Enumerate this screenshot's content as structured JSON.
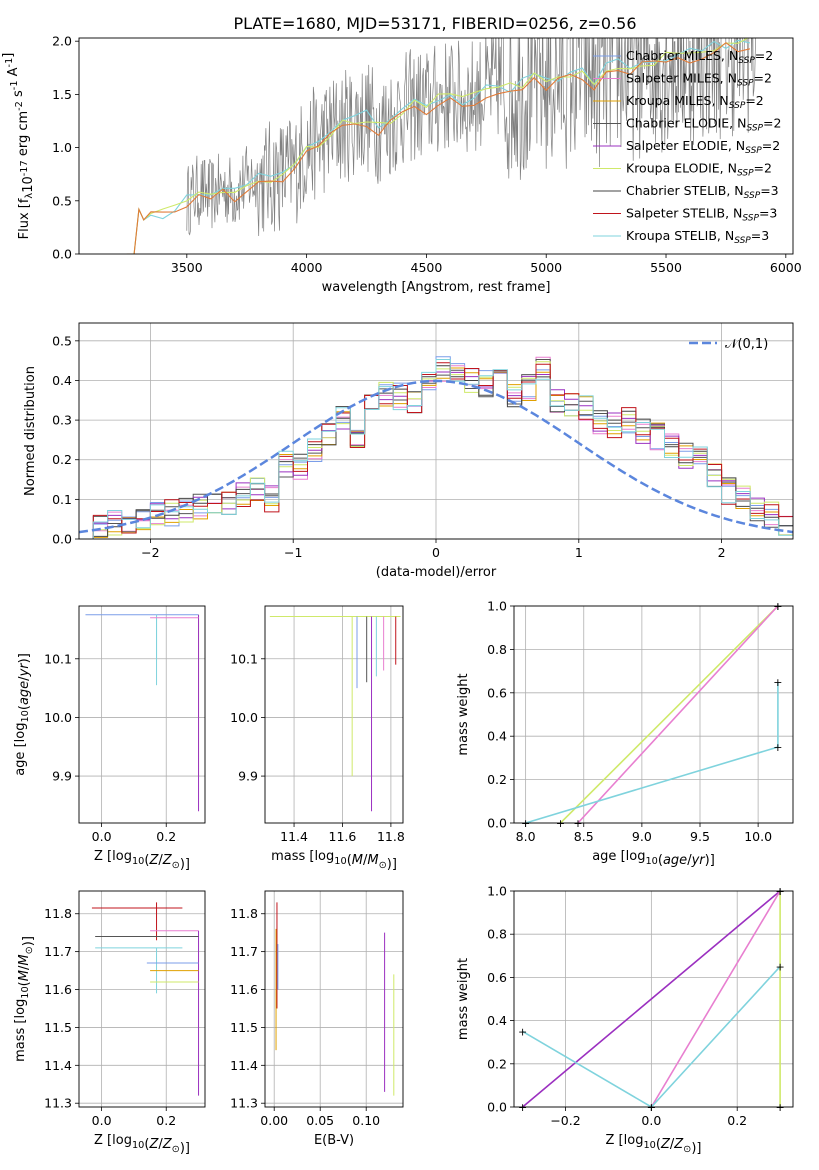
{
  "figure": {
    "title": "PLATE=1680, MJD=53171, FIBERID=0256, z=0.56",
    "colors": {
      "Chabrier MILES": "#7b9ee9",
      "Salpeter MILES": "#e87fd0",
      "Kroupa MILES": "#e0a000",
      "Chabrier ELODIE": "#555555",
      "Salpeter ELODIE": "#9b30c0",
      "Kroupa ELODIE": "#cfe96a",
      "Chabrier STELIB": "#444444",
      "Salpeter STELIB": "#c0141c",
      "Kroupa STELIB": "#7fd3dd",
      "data": "#808080",
      "model_top": "#e07b39",
      "gauss": "#5b86dd"
    }
  },
  "chart_data": [
    {
      "id": "spectrum",
      "type": "line",
      "xlabel": "wavelength [Angstrom, rest frame]",
      "ylabel": "Flux [f$_\\lambda$10$^{-17}$ erg cm$^{-2}$ s$^{-1}$ A$^{-1}$]",
      "xlim": [
        3050,
        6030
      ],
      "ylim": [
        0,
        2.03
      ],
      "xticks": [
        3500,
        4000,
        4500,
        5000,
        5500,
        6000
      ],
      "yticks": [
        0.0,
        0.5,
        1.0,
        1.5,
        2.0
      ],
      "grid": false,
      "legend_placement": "top-right",
      "legend": [
        {
          "name": "Chabrier MILES",
          "ssp": "2"
        },
        {
          "name": "Salpeter MILES",
          "ssp": "2"
        },
        {
          "name": "Kroupa MILES",
          "ssp": "2"
        },
        {
          "name": "Chabrier ELODIE",
          "ssp": "2"
        },
        {
          "name": "Salpeter ELODIE",
          "ssp": "2"
        },
        {
          "name": "Kroupa ELODIE",
          "ssp": "2"
        },
        {
          "name": "Chabrier STELIB",
          "ssp": "3"
        },
        {
          "name": "Salpeter STELIB",
          "ssp": "3"
        },
        {
          "name": "Kroupa STELIB",
          "ssp": "3"
        }
      ],
      "model_x": [
        3250,
        3280,
        3300,
        3320,
        3350,
        3400,
        3450,
        3500,
        3550,
        3600,
        3650,
        3700,
        3750,
        3800,
        3850,
        3900,
        3950,
        4000,
        4050,
        4100,
        4150,
        4200,
        4250,
        4300,
        4350,
        4400,
        4450,
        4500,
        4550,
        4600,
        4650,
        4700,
        4750,
        4800,
        4850,
        4900,
        4950,
        5000,
        5050,
        5100,
        5150,
        5200,
        5250,
        5300,
        5350,
        5400,
        5450,
        5500,
        5550,
        5600,
        5650,
        5700,
        5750,
        5800,
        5850
      ],
      "model_y": [
        0.0,
        0.0,
        0.42,
        0.38,
        0.4,
        0.38,
        0.42,
        0.5,
        0.6,
        0.55,
        0.62,
        0.58,
        0.68,
        0.7,
        0.72,
        0.75,
        0.8,
        1.0,
        1.05,
        1.15,
        1.2,
        1.25,
        1.3,
        1.2,
        1.25,
        1.35,
        1.4,
        1.4,
        1.45,
        1.5,
        1.45,
        1.5,
        1.55,
        1.6,
        1.55,
        1.6,
        1.65,
        1.6,
        1.68,
        1.7,
        1.72,
        1.65,
        1.75,
        1.78,
        1.75,
        1.8,
        1.82,
        1.85,
        1.88,
        1.9,
        1.92,
        1.95,
        1.98,
        2.0,
        2.02
      ],
      "data_xmin": 3500,
      "data_xmax": 5880
    },
    {
      "id": "residuals",
      "type": "bar",
      "xlabel": "(data-model)/error",
      "ylabel": "Normed distribution",
      "xlim": [
        -2.5,
        2.5
      ],
      "ylim": [
        0,
        0.545
      ],
      "xticks": [
        -2,
        -1,
        0,
        1,
        2
      ],
      "yticks": [
        0.0,
        0.1,
        0.2,
        0.3,
        0.4,
        0.5
      ],
      "grid": true,
      "legend_placement": "top-right",
      "legend": [
        {
          "name": "$\\mathcal{N}(0,1)$"
        }
      ],
      "bin_width": 0.1,
      "bins_x": [
        -2.5,
        -2.4,
        -2.3,
        -2.2,
        -2.1,
        -2.0,
        -1.9,
        -1.8,
        -1.7,
        -1.6,
        -1.5,
        -1.4,
        -1.3,
        -1.2,
        -1.1,
        -1.0,
        -0.9,
        -0.8,
        -0.7,
        -0.6,
        -0.5,
        -0.4,
        -0.3,
        -0.2,
        -0.1,
        0.0,
        0.1,
        0.2,
        0.3,
        0.4,
        0.5,
        0.6,
        0.7,
        0.8,
        0.9,
        1.0,
        1.1,
        1.2,
        1.3,
        1.4,
        1.5,
        1.6,
        1.7,
        1.8,
        1.9,
        2.0,
        2.1,
        2.2,
        2.3,
        2.4
      ],
      "base_values": [
        0.03,
        0.035,
        0.04,
        0.045,
        0.05,
        0.06,
        0.065,
        0.07,
        0.08,
        0.1,
        0.09,
        0.11,
        0.12,
        0.1,
        0.19,
        0.18,
        0.22,
        0.26,
        0.3,
        0.25,
        0.33,
        0.37,
        0.36,
        0.34,
        0.4,
        0.43,
        0.41,
        0.4,
        0.39,
        0.44,
        0.36,
        0.38,
        0.43,
        0.35,
        0.34,
        0.33,
        0.3,
        0.29,
        0.3,
        0.27,
        0.26,
        0.24,
        0.21,
        0.2,
        0.16,
        0.12,
        0.1,
        0.07,
        0.06,
        0.04
      ],
      "gauss_name": "N(0,1)"
    },
    {
      "id": "age-vs-Z",
      "type": "line",
      "xlabel": "Z [log$_{10}$($Z/Z_\\odot$)]",
      "ylabel": "age  [log$_{10}$($age/yr$)]",
      "xlim": [
        -0.07,
        0.32
      ],
      "ylim": [
        9.82,
        10.19
      ],
      "xticks": [
        0.0,
        0.2
      ],
      "yticks": [
        9.9,
        10.0,
        10.1
      ],
      "grid": true,
      "segments": [
        [
          -0.05,
          10.175,
          0.3,
          10.175
        ],
        [
          0.17,
          10.175,
          0.17,
          10.1
        ],
        [
          0.17,
          10.175,
          0.17,
          10.055
        ],
        [
          0.3,
          10.175,
          0.3,
          9.9
        ],
        [
          0.3,
          10.175,
          0.3,
          9.84
        ],
        [
          0.15,
          10.17,
          0.3,
          10.17
        ]
      ]
    },
    {
      "id": "age-vs-mass",
      "type": "line",
      "xlabel": "mass [log$_{10}$($M/M_\\odot$)]",
      "ylabel": "",
      "xlim": [
        11.28,
        11.85
      ],
      "ylim": [
        9.82,
        10.19
      ],
      "xticks": [
        11.4,
        11.6,
        11.8
      ],
      "yticks": [
        9.9,
        10.0,
        10.1
      ],
      "grid": true,
      "segments": [
        [
          11.3,
          10.172,
          11.84,
          10.172
        ],
        [
          11.64,
          10.172,
          11.64,
          9.9
        ],
        [
          11.66,
          10.172,
          11.66,
          10.05
        ],
        [
          11.72,
          10.172,
          11.72,
          9.84
        ],
        [
          11.74,
          10.172,
          11.74,
          10.07
        ],
        [
          11.77,
          10.172,
          11.77,
          10.08
        ],
        [
          11.82,
          10.172,
          11.82,
          10.09
        ],
        [
          11.7,
          10.172,
          11.7,
          10.06
        ]
      ]
    },
    {
      "id": "massweight-vs-age",
      "type": "line",
      "xlabel": "age  [log$_{10}$($age/yr$)]",
      "ylabel": "mass weight",
      "xlim": [
        7.9,
        10.3
      ],
      "ylim": [
        0,
        1.0
      ],
      "xticks": [
        8.0,
        8.5,
        9.0,
        9.5,
        10.0
      ],
      "yticks": [
        0.0,
        0.2,
        0.4,
        0.6,
        0.8,
        1.0
      ],
      "grid": true,
      "series": [
        {
          "key": "Kroupa ELODIE",
          "x": [
            8.3,
            10.17
          ],
          "y": [
            0.0,
            1.0
          ]
        },
        {
          "key": "Salpeter MILES",
          "x": [
            8.45,
            10.17
          ],
          "y": [
            0.0,
            1.0
          ]
        },
        {
          "key": "Kroupa STELIB",
          "x": [
            8.0,
            10.17,
            10.17
          ],
          "y": [
            0.0,
            0.35,
            0.65
          ]
        }
      ]
    },
    {
      "id": "mass-vs-Z",
      "type": "line",
      "xlabel": "Z [log$_{10}$($Z/Z_\\odot$)]",
      "ylabel": "mass [log$_{10}$($M/M_\\odot$)]",
      "xlim": [
        -0.07,
        0.32
      ],
      "ylim": [
        11.29,
        11.86
      ],
      "xticks": [
        0.0,
        0.2
      ],
      "yticks": [
        11.3,
        11.4,
        11.5,
        11.6,
        11.7,
        11.8
      ],
      "grid": true,
      "segments": [
        [
          -0.03,
          11.815,
          0.25,
          11.815
        ],
        [
          0.17,
          11.83,
          0.17,
          11.73
        ],
        [
          0.15,
          11.755,
          0.3,
          11.755
        ],
        [
          0.3,
          11.755,
          0.3,
          11.32
        ],
        [
          -0.02,
          11.74,
          0.3,
          11.74
        ],
        [
          -0.02,
          11.71,
          0.25,
          11.71
        ],
        [
          0.17,
          11.71,
          0.17,
          11.59
        ],
        [
          0.14,
          11.67,
          0.3,
          11.67
        ],
        [
          0.15,
          11.65,
          0.3,
          11.65
        ],
        [
          0.15,
          11.62,
          0.3,
          11.62
        ]
      ]
    },
    {
      "id": "mass-vs-EBV",
      "type": "line",
      "xlabel": "E(B-V)",
      "ylabel": "",
      "xlim": [
        -0.01,
        0.14
      ],
      "ylim": [
        11.29,
        11.86
      ],
      "xticks": [
        0.0,
        0.05,
        0.1
      ],
      "yticks": [
        11.3,
        11.4,
        11.5,
        11.6,
        11.7,
        11.8
      ],
      "grid": true,
      "segments": [
        [
          0.002,
          11.76,
          0.002,
          11.44
        ],
        [
          0.003,
          11.83,
          0.003,
          11.55
        ],
        [
          0.004,
          11.72,
          0.004,
          11.6
        ],
        [
          0.12,
          11.75,
          0.12,
          11.33
        ],
        [
          0.13,
          11.64,
          0.13,
          11.32
        ]
      ]
    },
    {
      "id": "massweight-vs-Z",
      "type": "line",
      "xlabel": "Z [log$_{10}$($Z/Z_\\odot$)]",
      "ylabel": "mass weight",
      "xlim": [
        -0.32,
        0.33
      ],
      "ylim": [
        0,
        1.0
      ],
      "xticks": [
        -0.2,
        0.0,
        0.2
      ],
      "yticks": [
        0.0,
        0.2,
        0.4,
        0.6,
        0.8,
        1.0
      ],
      "grid": true,
      "series": [
        {
          "key": "Salpeter ELODIE",
          "x": [
            -0.3,
            0.3
          ],
          "y": [
            0.0,
            1.0
          ]
        },
        {
          "key": "Salpeter MILES",
          "x": [
            0.0,
            0.3
          ],
          "y": [
            0.0,
            1.0
          ]
        },
        {
          "key": "Kroupa STELIB",
          "x": [
            -0.3,
            0.0,
            0.3
          ],
          "y": [
            0.35,
            0.0,
            0.65
          ]
        },
        {
          "key": "Kroupa ELODIE",
          "x": [
            0.3,
            0.3
          ],
          "y": [
            0.0,
            1.0
          ]
        }
      ]
    }
  ]
}
